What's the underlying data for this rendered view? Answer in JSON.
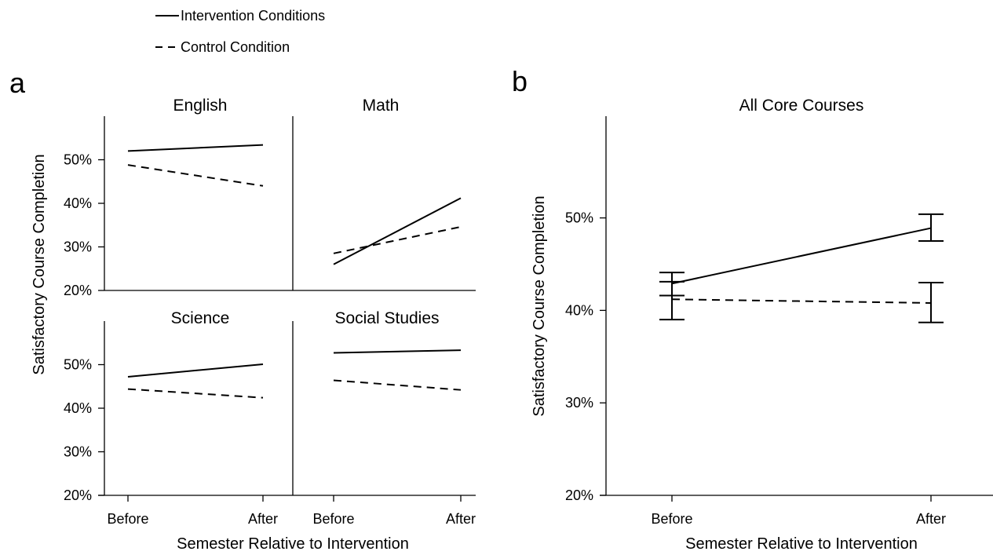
{
  "legend": [
    {
      "label": "Intervention Conditions",
      "style": "solid"
    },
    {
      "label": "Control Condition",
      "style": "dashed"
    }
  ],
  "panel_letters": {
    "a": "a",
    "b": "b"
  },
  "chart_data": [
    {
      "type": "line",
      "panel": "a",
      "ylabel": "Satisfactory Course Completion",
      "xlabel": "Semester Relative to Intervention",
      "categories": [
        "Before",
        "After"
      ],
      "ylim": [
        20,
        60
      ],
      "yticks": [
        20,
        30,
        40,
        50
      ],
      "ytick_labels": [
        "20%",
        "30%",
        "40%",
        "50%"
      ],
      "subplots": [
        {
          "title": "English",
          "series": [
            {
              "name": "Intervention Conditions",
              "style": "solid",
              "values": [
                52.0,
                53.4
              ]
            },
            {
              "name": "Control Condition",
              "style": "dashed",
              "values": [
                48.8,
                44.0
              ]
            }
          ]
        },
        {
          "title": "Math",
          "series": [
            {
              "name": "Intervention Conditions",
              "style": "solid",
              "values": [
                26.0,
                41.2
              ]
            },
            {
              "name": "Control Condition",
              "style": "dashed",
              "values": [
                28.5,
                34.6
              ]
            }
          ]
        },
        {
          "title": "Science",
          "series": [
            {
              "name": "Intervention Conditions",
              "style": "solid",
              "values": [
                47.2,
                50.1
              ]
            },
            {
              "name": "Control Condition",
              "style": "dashed",
              "values": [
                44.4,
                42.4
              ]
            }
          ]
        },
        {
          "title": "Social Studies",
          "series": [
            {
              "name": "Intervention Conditions",
              "style": "solid",
              "values": [
                52.7,
                53.3
              ]
            },
            {
              "name": "Control Condition",
              "style": "dashed",
              "values": [
                46.4,
                44.2
              ]
            }
          ]
        }
      ]
    },
    {
      "type": "line",
      "panel": "b",
      "title": "All Core Courses",
      "ylabel": "Satisfactory Course Completion",
      "xlabel": "Semester Relative to Intervention",
      "categories": [
        "Before",
        "After"
      ],
      "ylim": [
        20,
        61
      ],
      "yticks": [
        20,
        30,
        40,
        50
      ],
      "ytick_labels": [
        "20%",
        "30%",
        "40%",
        "50%"
      ],
      "series": [
        {
          "name": "Intervention Conditions",
          "style": "solid",
          "values": [
            42.9,
            48.9
          ],
          "error_low": [
            41.6,
            47.5
          ],
          "error_high": [
            44.1,
            50.4
          ]
        },
        {
          "name": "Control Condition",
          "style": "dashed",
          "values": [
            41.2,
            40.8
          ],
          "error_low": [
            39.0,
            38.7
          ],
          "error_high": [
            43.1,
            43.0
          ]
        }
      ]
    }
  ]
}
